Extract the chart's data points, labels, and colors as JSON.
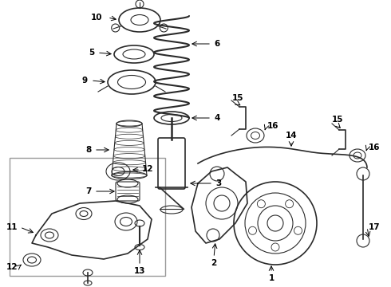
{
  "bg_color": "#ffffff",
  "lc": "#2a2a2a",
  "fig_w": 4.9,
  "fig_h": 3.6,
  "dpi": 100,
  "xlim": [
    0,
    490
  ],
  "ylim": [
    0,
    360
  ]
}
